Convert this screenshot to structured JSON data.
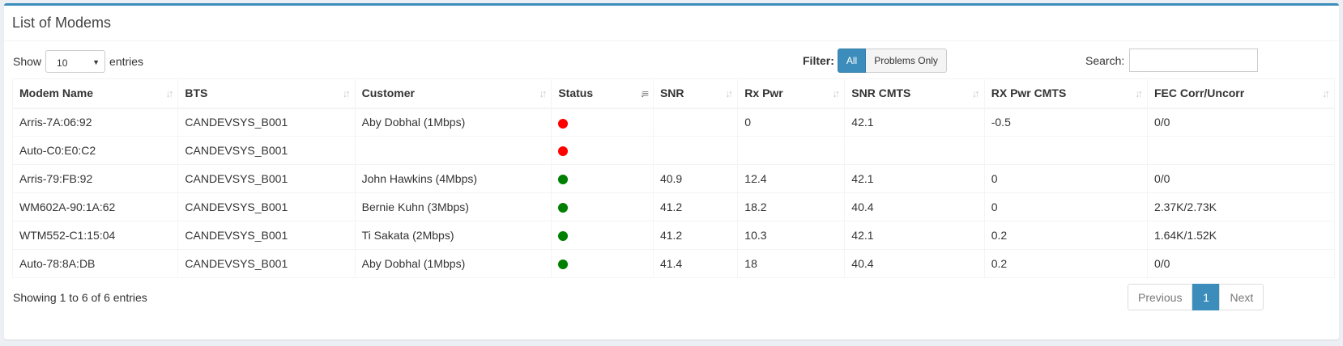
{
  "title": "List of Modems",
  "length": {
    "label_show": "Show",
    "selected": "10",
    "label_entries": "entries"
  },
  "filter": {
    "label": "Filter:",
    "all": "All",
    "problems": "Problems Only"
  },
  "search": {
    "label": "Search:",
    "value": "",
    "placeholder": ""
  },
  "columns": [
    "Modem Name",
    "BTS",
    "Customer",
    "Status",
    "SNR",
    "Rx Pwr",
    "SNR CMTS",
    "RX Pwr CMTS",
    "FEC Corr/Uncorr"
  ],
  "status_colors": {
    "bad": "#ff0000",
    "ok": "#008000"
  },
  "rows": [
    {
      "modem": "Arris-7A:06:92",
      "bts": "CANDEVSYS_B001",
      "customer": "Aby Dobhal (1Mbps)",
      "status": "bad",
      "snr": "",
      "rxpwr": "0",
      "snr_cmts": "42.1",
      "rxpwr_cmts": "-0.5",
      "fec": "0/0"
    },
    {
      "modem": "Auto-C0:E0:C2",
      "bts": "CANDEVSYS_B001",
      "customer": "",
      "status": "bad",
      "snr": "",
      "rxpwr": "",
      "snr_cmts": "",
      "rxpwr_cmts": "",
      "fec": ""
    },
    {
      "modem": "Arris-79:FB:92",
      "bts": "CANDEVSYS_B001",
      "customer": "John Hawkins (4Mbps)",
      "status": "ok",
      "snr": "40.9",
      "rxpwr": "12.4",
      "snr_cmts": "42.1",
      "rxpwr_cmts": "0",
      "fec": "0/0"
    },
    {
      "modem": "WM602A-90:1A:62",
      "bts": "CANDEVSYS_B001",
      "customer": "Bernie Kuhn (3Mbps)",
      "status": "ok",
      "snr": "41.2",
      "rxpwr": "18.2",
      "snr_cmts": "40.4",
      "rxpwr_cmts": "0",
      "fec": "2.37K/2.73K"
    },
    {
      "modem": "WTM552-C1:15:04",
      "bts": "CANDEVSYS_B001",
      "customer": "Ti Sakata (2Mbps)",
      "status": "ok",
      "snr": "41.2",
      "rxpwr": "10.3",
      "snr_cmts": "42.1",
      "rxpwr_cmts": "0.2",
      "fec": "1.64K/1.52K"
    },
    {
      "modem": "Auto-78:8A:DB",
      "bts": "CANDEVSYS_B001",
      "customer": "Aby Dobhal (1Mbps)",
      "status": "ok",
      "snr": "41.4",
      "rxpwr": "18",
      "snr_cmts": "40.4",
      "rxpwr_cmts": "0.2",
      "fec": "0/0"
    }
  ],
  "info": "Showing 1 to 6 of 6 entries",
  "pagination": {
    "previous": "Previous",
    "current": "1",
    "next": "Next"
  }
}
